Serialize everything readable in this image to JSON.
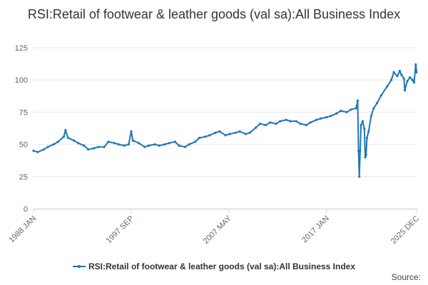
{
  "chart_data": {
    "type": "line",
    "title": "RSI:Retail of footwear & leather goods (val sa):All Business Index",
    "x_tick_labels": [
      "1988 JAN",
      "1997 SEP",
      "2007 MAY",
      "2017 JAN",
      "2025 DEC"
    ],
    "x_tick_positions": [
      "1988-01",
      "1997-09",
      "2007-05",
      "2017-01",
      "2025-12"
    ],
    "x_range": [
      "1988-01",
      "2025-12"
    ],
    "y_ticks": [
      0,
      25,
      50,
      75,
      100,
      125
    ],
    "ylim": [
      0,
      125
    ],
    "grid": true,
    "legend_position": "bottom-center",
    "series": [
      {
        "name": "RSI:Retail of footwear & leather goods (val sa):All Business Index",
        "color": "#1f77b4",
        "points": [
          [
            "1988-01",
            45
          ],
          [
            "1988-06",
            44
          ],
          [
            "1989-01",
            46
          ],
          [
            "1989-06",
            48
          ],
          [
            "1990-01",
            50
          ],
          [
            "1990-06",
            52
          ],
          [
            "1991-01",
            56
          ],
          [
            "1991-03",
            61
          ],
          [
            "1991-06",
            55
          ],
          [
            "1992-01",
            53
          ],
          [
            "1992-06",
            51
          ],
          [
            "1993-01",
            49
          ],
          [
            "1993-06",
            46
          ],
          [
            "1994-01",
            47
          ],
          [
            "1994-06",
            48
          ],
          [
            "1995-01",
            48
          ],
          [
            "1995-06",
            52
          ],
          [
            "1996-01",
            51
          ],
          [
            "1996-06",
            50
          ],
          [
            "1997-01",
            49
          ],
          [
            "1997-06",
            50
          ],
          [
            "1997-09",
            60
          ],
          [
            "1997-11",
            53
          ],
          [
            "1998-06",
            51
          ],
          [
            "1999-01",
            48
          ],
          [
            "1999-06",
            49
          ],
          [
            "2000-01",
            50
          ],
          [
            "2000-06",
            49
          ],
          [
            "2001-01",
            50
          ],
          [
            "2001-06",
            51
          ],
          [
            "2002-01",
            52
          ],
          [
            "2002-06",
            49
          ],
          [
            "2003-01",
            48
          ],
          [
            "2003-06",
            50
          ],
          [
            "2004-01",
            52
          ],
          [
            "2004-06",
            55
          ],
          [
            "2005-01",
            56
          ],
          [
            "2005-06",
            57
          ],
          [
            "2006-01",
            59
          ],
          [
            "2006-06",
            60
          ],
          [
            "2007-01",
            57
          ],
          [
            "2007-06",
            58
          ],
          [
            "2008-01",
            59
          ],
          [
            "2008-06",
            60
          ],
          [
            "2009-01",
            58
          ],
          [
            "2009-06",
            59
          ],
          [
            "2010-01",
            63
          ],
          [
            "2010-06",
            66
          ],
          [
            "2011-01",
            65
          ],
          [
            "2011-06",
            67
          ],
          [
            "2012-01",
            66
          ],
          [
            "2012-06",
            68
          ],
          [
            "2013-01",
            69
          ],
          [
            "2013-06",
            68
          ],
          [
            "2014-01",
            68
          ],
          [
            "2014-06",
            66
          ],
          [
            "2015-01",
            65
          ],
          [
            "2015-06",
            67
          ],
          [
            "2016-01",
            69
          ],
          [
            "2016-06",
            70
          ],
          [
            "2017-01",
            71
          ],
          [
            "2017-06",
            72
          ],
          [
            "2018-01",
            74
          ],
          [
            "2018-06",
            76
          ],
          [
            "2019-01",
            75
          ],
          [
            "2019-06",
            77
          ],
          [
            "2019-12",
            78
          ],
          [
            "2020-01",
            80
          ],
          [
            "2020-02",
            84
          ],
          [
            "2020-03",
            45
          ],
          [
            "2020-04",
            25
          ],
          [
            "2020-05",
            45
          ],
          [
            "2020-06",
            65
          ],
          [
            "2020-08",
            68
          ],
          [
            "2020-10",
            62
          ],
          [
            "2020-11",
            40
          ],
          [
            "2020-12",
            42
          ],
          [
            "2021-01",
            55
          ],
          [
            "2021-03",
            60
          ],
          [
            "2021-06",
            72
          ],
          [
            "2021-09",
            78
          ],
          [
            "2022-01",
            82
          ],
          [
            "2022-06",
            88
          ],
          [
            "2023-01",
            95
          ],
          [
            "2023-06",
            100
          ],
          [
            "2023-09",
            106
          ],
          [
            "2024-01",
            103
          ],
          [
            "2024-04",
            107
          ],
          [
            "2024-06",
            104
          ],
          [
            "2024-09",
            101
          ],
          [
            "2024-10",
            92
          ],
          [
            "2025-01",
            99
          ],
          [
            "2025-04",
            102
          ],
          [
            "2025-07",
            100
          ],
          [
            "2025-09",
            98
          ],
          [
            "2025-11",
            112
          ],
          [
            "2025-12",
            106
          ]
        ]
      }
    ]
  },
  "credits": "Source:"
}
